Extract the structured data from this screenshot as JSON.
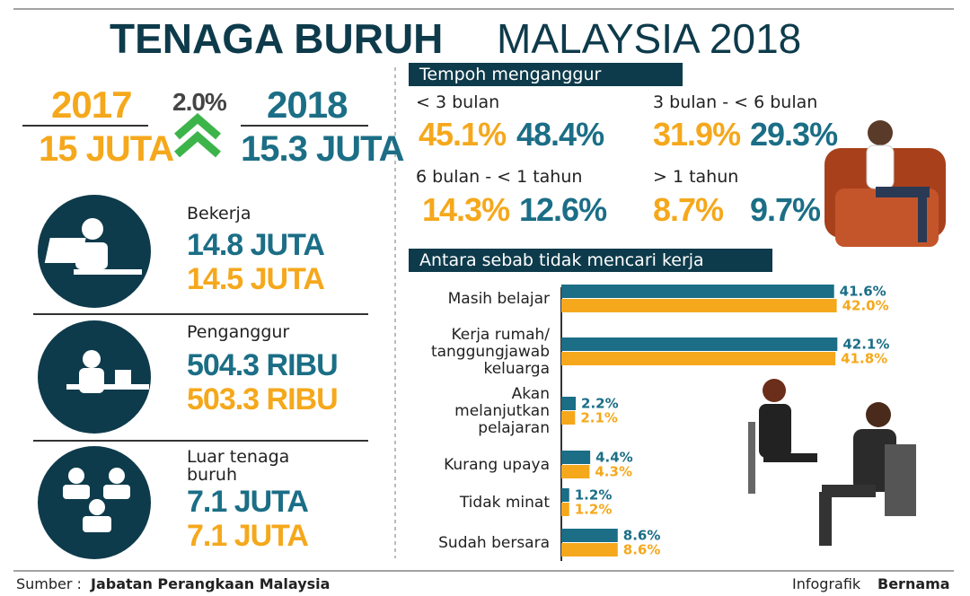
{
  "title": {
    "bold": "TENAGA BURUH",
    "light": "MALAYSIA 2018"
  },
  "summary": {
    "year_a": "2017",
    "total_a": "15 JUTA",
    "change": "2.0%",
    "year_b": "2018",
    "total_b": "15.3 JUTA"
  },
  "groups": [
    {
      "label": "Bekerja",
      "value_2018": "14.8 JUTA",
      "value_2017": "14.5 JUTA"
    },
    {
      "label": "Penganggur",
      "value_2018": "504.3 RIBU",
      "value_2017": "503.3 RIBU"
    },
    {
      "label": "Luar tenaga\nburuh",
      "value_2018": "7.1 JUTA",
      "value_2017": "7.1 JUTA"
    }
  ],
  "duration": {
    "title": "Tempoh menganggur",
    "items": [
      {
        "label": "< 3 bulan",
        "value_2017": "45.1%",
        "value_2018": "48.4%"
      },
      {
        "label": "3 bulan - < 6 bulan",
        "value_2017": "31.9%",
        "value_2018": "29.3%"
      },
      {
        "label": "6 bulan - < 1 tahun",
        "value_2017": "14.3%",
        "value_2018": "12.6%"
      },
      {
        "label": "> 1 tahun",
        "value_2017": "8.7%",
        "value_2018": "9.7%"
      }
    ]
  },
  "chart_data": {
    "type": "bar",
    "orientation": "horizontal",
    "title": "Antara sebab tidak mencari kerja",
    "categories": [
      "Masih belajar",
      "Kerja rumah/\ntanggungjawab\nkeluarga",
      "Akan\nmelanjutkan\npelajaran",
      "Kurang upaya",
      "Tidak minat",
      "Sudah bersara"
    ],
    "series": [
      {
        "color": "#1b6e86",
        "values": [
          41.6,
          42.1,
          2.2,
          4.4,
          1.2,
          8.6
        ],
        "value_labels": [
          "41.6%",
          "42.1%",
          "2.2%",
          "4.4%",
          "1.2%",
          "8.6%"
        ]
      },
      {
        "color": "#f5a81c",
        "values": [
          42.0,
          41.8,
          2.1,
          4.3,
          1.2,
          8.6
        ],
        "value_labels": [
          "42.0%",
          "41.8%",
          "2.1%",
          "4.3%",
          "1.2%",
          "8.6%"
        ]
      }
    ]
  },
  "footer": {
    "source_label": "Sumber :",
    "source": "Jabatan Perangkaan Malaysia",
    "credit_label": "Infografik",
    "credit": "Bernama"
  }
}
